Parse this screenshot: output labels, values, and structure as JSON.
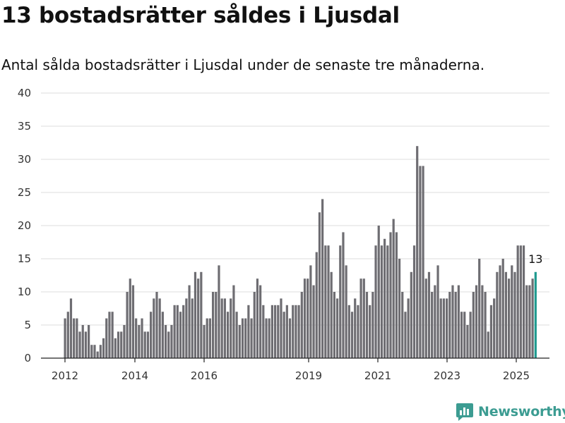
{
  "header": {
    "title": "13 bostadsrätter såldes i Ljusdal",
    "subtitle": "Antal sålda bostadsrätter i Ljusdal under de senaste tre månaderna."
  },
  "brand": {
    "name": "Newsworthy",
    "icon": "newsworthy-logo-icon",
    "color": "#3c9c92"
  },
  "chart_data": {
    "type": "bar",
    "title": "",
    "xlabel": "",
    "ylabel": "",
    "ylim": [
      0,
      40
    ],
    "yticks": [
      0,
      5,
      10,
      15,
      20,
      25,
      30,
      35,
      40
    ],
    "xticks": [
      "2012",
      "2014",
      "2016",
      "2019",
      "2021",
      "2023",
      "2025"
    ],
    "grid": true,
    "bar_color": "#6e6d72",
    "highlight_color": "#1f9a8f",
    "highlight_label": "13",
    "values": [
      6,
      7,
      9,
      6,
      6,
      4,
      5,
      4,
      5,
      2,
      2,
      1,
      2,
      3,
      6,
      7,
      7,
      3,
      4,
      4,
      5,
      10,
      12,
      11,
      6,
      5,
      6,
      4,
      4,
      7,
      9,
      10,
      9,
      7,
      5,
      4,
      5,
      8,
      8,
      7,
      8,
      9,
      11,
      9,
      13,
      12,
      13,
      5,
      6,
      6,
      10,
      10,
      14,
      9,
      9,
      7,
      9,
      11,
      7,
      5,
      6,
      6,
      8,
      6,
      10,
      12,
      11,
      8,
      6,
      6,
      8,
      8,
      8,
      9,
      7,
      8,
      6,
      8,
      8,
      8,
      10,
      12,
      12,
      14,
      11,
      16,
      22,
      24,
      17,
      17,
      13,
      10,
      9,
      17,
      19,
      14,
      8,
      7,
      9,
      8,
      12,
      12,
      10,
      8,
      10,
      17,
      20,
      17,
      18,
      17,
      19,
      21,
      19,
      15,
      10,
      7,
      9,
      13,
      17,
      32,
      29,
      29,
      12,
      13,
      10,
      11,
      14,
      9,
      9,
      9,
      10,
      11,
      10,
      11,
      7,
      7,
      5,
      7,
      10,
      11,
      15,
      11,
      10,
      4,
      8,
      9,
      13,
      14,
      15,
      13,
      12,
      14,
      13,
      17,
      17,
      17,
      11,
      11,
      12,
      13
    ]
  }
}
